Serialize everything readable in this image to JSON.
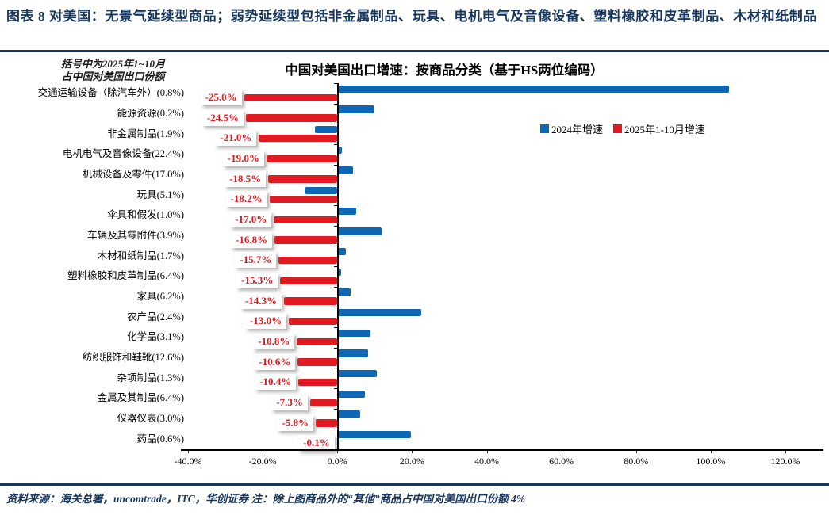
{
  "header": {
    "title": "图表 8  对美国：无景气延续型商品；弱势延续型包括非金属制品、玩具、电机电气及音像设备、塑料橡胶和皮革制品、木材和纸制品"
  },
  "footer": {
    "text": "资料来源：海关总署，uncomtrade，ITC，华创证券   注：除上图商品外的“其他”商品占中国对美国出口份额 4%"
  },
  "colors": {
    "navy": "#17375E",
    "blue_series": "#0E67B4",
    "red_series": "#E01A20"
  },
  "chart_data": {
    "type": "bar",
    "orientation": "horizontal",
    "title": "中国对美国出口增速：按商品分类（基于HS两位编码）",
    "annotation": [
      "括号中为2025年1~10月",
      "占中国对美国出口份额"
    ],
    "legend_position": "upper-right-inside",
    "grid": false,
    "xlim": [
      -40,
      120
    ],
    "x_ticks": {
      "values": [
        -40,
        -20,
        0,
        20,
        40,
        60,
        80,
        100,
        120
      ],
      "labels": [
        "-40.0%",
        "-20.0%",
        "0.0%",
        "20.0%",
        "40.0%",
        "60.0%",
        "80.0%",
        "100.0%",
        "120.0%"
      ]
    },
    "categories": [
      "交通运输设备（除汽车外）(0.8%)",
      "能源资源(0.2%)",
      "非金属制品(1.9%)",
      "电机电气及音像设备(22.4%)",
      "机械设备及零件(17.0%)",
      "玩具(5.1%)",
      "伞具和假发(1.0%)",
      "车辆及其零附件(3.9%)",
      "木材和纸制品(1.7%)",
      "塑料橡胶和皮革制品(6.4%)",
      "家具(6.2%)",
      "农产品(2.4%)",
      "化学品(3.1%)",
      "纺织服饰和鞋靴(12.6%)",
      "杂项制品(1.3%)",
      "金属及其制品(6.4%)",
      "仪器仪表(3.0%)",
      "药品(0.6%)"
    ],
    "series": [
      {
        "name": "2024年增速",
        "color": "#0E67B4",
        "values": [
          105,
          10,
          -6,
          1.2,
          4.2,
          -8.8,
          5,
          11.8,
          2.2,
          1.1,
          3.5,
          22.4,
          8.9,
          8.2,
          10.6,
          7.4,
          6.1,
          19.8
        ]
      },
      {
        "name": "2025年1-10月增速",
        "color": "#E01A20",
        "values": [
          -25.0,
          -24.5,
          -21.0,
          -19.0,
          -18.5,
          -18.2,
          -17.0,
          -16.8,
          -15.7,
          -15.3,
          -14.3,
          -13.0,
          -10.8,
          -10.6,
          -10.4,
          -7.3,
          -5.8,
          -0.1
        ],
        "labels": [
          "-25.0%",
          "-24.5%",
          "-21.0%",
          "-19.0%",
          "-18.5%",
          "-18.2%",
          "-17.0%",
          "-16.8%",
          "-15.7%",
          "-15.3%",
          "-14.3%",
          "-13.0%",
          "-10.8%",
          "-10.6%",
          "-10.4%",
          "-7.3%",
          "-5.8%",
          "-0.1%"
        ]
      }
    ]
  }
}
